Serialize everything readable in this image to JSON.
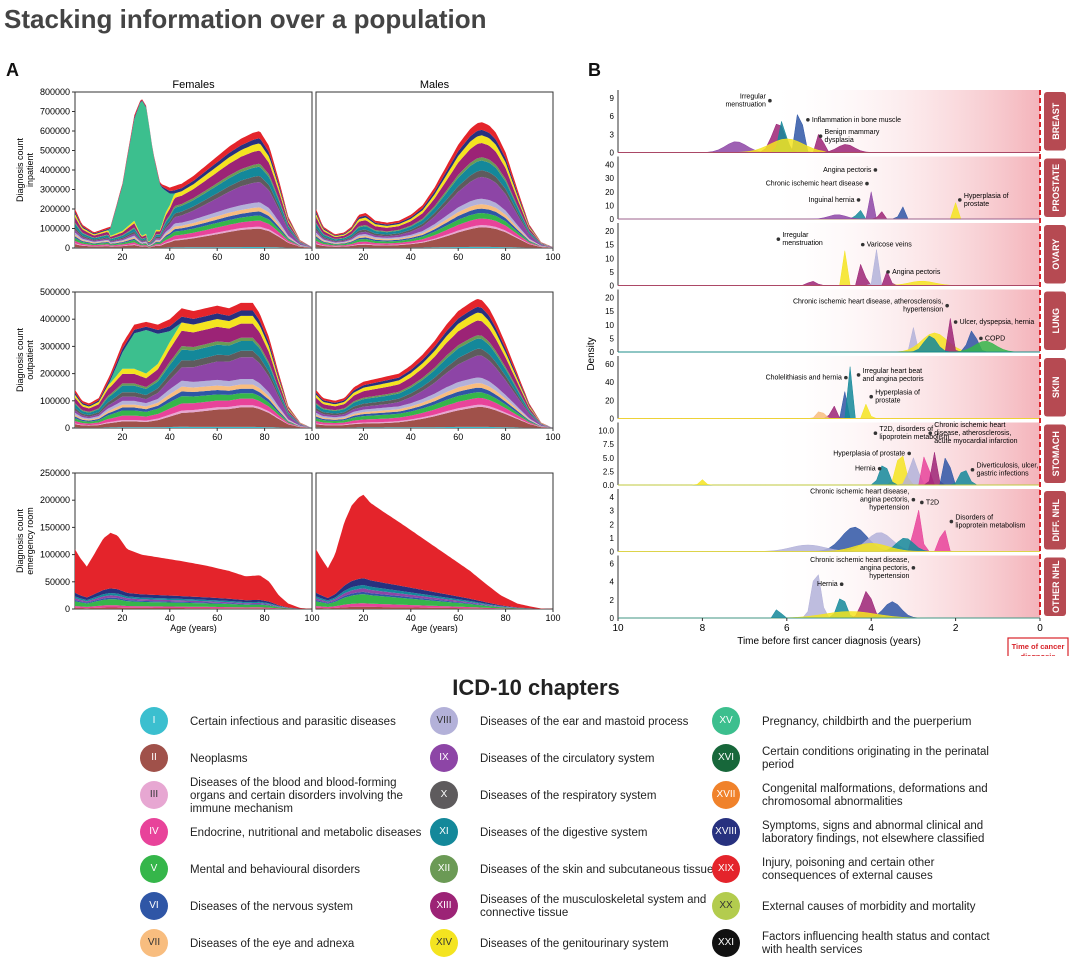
{
  "title": "Stacking information over a population",
  "panel_a_letter": "A",
  "panel_b_letter": "B",
  "legend_title": "ICD-10 chapters",
  "chart_data": [
    {
      "type": "area",
      "panel": "A",
      "stacked": true,
      "column_titles": [
        "Females",
        "Males"
      ],
      "xlabel": "Age (years)",
      "xlim": [
        0,
        100
      ],
      "xticks": [
        "20",
        "40",
        "60",
        "80",
        "100"
      ],
      "rows": [
        {
          "ylabel": [
            "Diagnosis count",
            "inpatient"
          ],
          "ylim": [
            0,
            800000
          ],
          "yticks": [
            "0",
            "100000",
            "200000",
            "300000",
            "400000",
            "500000",
            "600000",
            "700000",
            "800000"
          ],
          "females_total": {
            "x": [
              0,
              3,
              8,
              15,
              20,
              25,
              28,
              30,
              33,
              36,
              40,
              45,
              50,
              55,
              60,
              65,
              70,
              75,
              78,
              82,
              86,
              90,
              95,
              100
            ],
            "y": [
              200000,
              120000,
              80000,
              110000,
              330000,
              680000,
              770000,
              730000,
              490000,
              330000,
              310000,
              330000,
              370000,
              420000,
              470000,
              520000,
              560000,
              590000,
              600000,
              520000,
              350000,
              160000,
              40000,
              5000
            ]
          },
          "females_pregnancy": {
            "x": [
              14,
              20,
              25,
              28,
              31,
              34,
              38,
              42
            ],
            "y": [
              0,
              230000,
              520000,
              700000,
              620000,
              330000,
              120000,
              0
            ]
          },
          "males_total": {
            "x": [
              0,
              3,
              8,
              12,
              15,
              18,
              21,
              25,
              30,
              35,
              40,
              45,
              50,
              55,
              60,
              65,
              68,
              70,
              73,
              76,
              80,
              85,
              90,
              95,
              100
            ],
            "y": [
              200000,
              110000,
              70000,
              80000,
              110000,
              170000,
              180000,
              140000,
              130000,
              140000,
              170000,
              220000,
              310000,
              420000,
              530000,
              610000,
              640000,
              645000,
              630000,
              590000,
              490000,
              300000,
              120000,
              30000,
              5000
            ]
          }
        },
        {
          "ylabel": [
            "Diagnosis count",
            "outpatient"
          ],
          "ylim": [
            0,
            500000
          ],
          "yticks": [
            "0",
            "100000",
            "200000",
            "300000",
            "400000",
            "500000"
          ],
          "females_total": {
            "x": [
              0,
              3,
              6,
              10,
              15,
              20,
              25,
              30,
              35,
              40,
              45,
              50,
              55,
              60,
              65,
              70,
              75,
              78,
              82,
              86,
              90,
              95,
              100
            ],
            "y": [
              140000,
              100000,
              90000,
              110000,
              200000,
              310000,
              380000,
              390000,
              380000,
              400000,
              440000,
              430000,
              440000,
              450000,
              440000,
              460000,
              460000,
              420000,
              330000,
              200000,
              80000,
              20000,
              0
            ]
          },
          "females_pregnancy": {
            "x": [
              14,
              20,
              25,
              30,
              35,
              40,
              45
            ],
            "y": [
              0,
              60000,
              130000,
              160000,
              110000,
              40000,
              0
            ]
          },
          "males_total": {
            "x": [
              0,
              3,
              8,
              12,
              16,
              20,
              25,
              30,
              35,
              40,
              45,
              50,
              55,
              60,
              65,
              68,
              70,
              73,
              76,
              80,
              85,
              90,
              95,
              100
            ],
            "y": [
              140000,
              110000,
              100000,
              110000,
              150000,
              170000,
              180000,
              190000,
              200000,
              230000,
              270000,
              320000,
              380000,
              430000,
              460000,
              475000,
              470000,
              440000,
              390000,
              310000,
              200000,
              90000,
              20000,
              0
            ]
          }
        },
        {
          "ylabel": [
            "Diagnosis count",
            "emergency room"
          ],
          "ylim": [
            0,
            250000
          ],
          "yticks": [
            "0",
            "50000",
            "100000",
            "150000",
            "200000",
            "250000"
          ],
          "females_total": {
            "x": [
              0,
              2,
              5,
              8,
              12,
              15,
              18,
              22,
              28,
              35,
              45,
              55,
              65,
              72,
              78,
              82,
              86,
              90,
              95,
              100
            ],
            "y": [
              110000,
              95000,
              78000,
              100000,
              130000,
              140000,
              135000,
              110000,
              100000,
              95000,
              88000,
              80000,
              70000,
              60000,
              62000,
              50000,
              25000,
              10000,
              2000,
              0
            ]
          },
          "males_total": {
            "x": [
              0,
              2,
              5,
              8,
              12,
              15,
              18,
              20,
              23,
              28,
              35,
              45,
              55,
              65,
              72,
              78,
              85,
              90,
              95,
              100
            ],
            "y": [
              110000,
              95000,
              75000,
              100000,
              160000,
              190000,
              205000,
              210000,
              195000,
              180000,
              160000,
              130000,
              100000,
              70000,
              45000,
              25000,
              10000,
              5000,
              1000,
              0
            ]
          }
        }
      ]
    },
    {
      "type": "area",
      "panel": "B",
      "xlabel": "Time before first cancer diagnosis (years)",
      "ylabel": "Density",
      "xlim": [
        10,
        0
      ],
      "xticks": [
        "10",
        "8",
        "6",
        "4",
        "2",
        "0"
      ],
      "cancer_marker": [
        "Time of cancer",
        "diagnosis"
      ],
      "strips": [
        {
          "cancer": "BREAST",
          "yticks": [
            "0",
            "3",
            "6",
            "9"
          ],
          "annotations": [
            [
              "Irregular",
              "menstruation"
            ],
            [
              "Inflammation in bone muscle"
            ],
            [
              "Benign mammary",
              "dysplasia"
            ]
          ]
        },
        {
          "cancer": "PROSTATE",
          "yticks": [
            "0",
            "10",
            "20",
            "30",
            "40"
          ],
          "annotations": [
            [
              "Angina pectoris"
            ],
            [
              "Chronic ischemic heart disease"
            ],
            [
              "Inguinal hernia"
            ],
            [
              "Hyperplasia of",
              "prostate"
            ]
          ]
        },
        {
          "cancer": "OVARY",
          "yticks": [
            "0",
            "5",
            "10",
            "15",
            "20"
          ],
          "annotations": [
            [
              "Irregular",
              "menstruation"
            ],
            [
              "Varicose veins"
            ],
            [
              "Angina pectoris"
            ]
          ]
        },
        {
          "cancer": "LUNG",
          "yticks": [
            "0",
            "5",
            "10",
            "15",
            "20"
          ],
          "annotations": [
            [
              "Chronic ischemic heart disease, atherosclerosis,",
              "hypertension"
            ],
            [
              "Ulcer, dyspepsia, hernia"
            ],
            [
              "COPD"
            ]
          ]
        },
        {
          "cancer": "SKIN",
          "yticks": [
            "0",
            "20",
            "40",
            "60"
          ],
          "annotations": [
            [
              "Cholelithiasis and hernia"
            ],
            [
              "Irregular heart beat",
              "and angina pectoris"
            ],
            [
              "Hyperplasia of",
              "prostate"
            ]
          ]
        },
        {
          "cancer": "STOMACH",
          "yticks": [
            "0.0",
            "2.5",
            "5.0",
            "7.5",
            "10.0"
          ],
          "annotations": [
            [
              "T2D, disorders of",
              "lipoprotein metabolism"
            ],
            [
              "Chronic ischemic heart",
              "disease, atherosclerosis,",
              "acute myocardial infarction"
            ],
            [
              "Hyperplasia of prostate"
            ],
            [
              "Hernia"
            ],
            [
              "Diverticulosis, ulcer,",
              "gastric infections"
            ]
          ]
        },
        {
          "cancer": "DIFF. NHL",
          "yticks": [
            "0",
            "1",
            "2",
            "3",
            "4"
          ],
          "annotations": [
            [
              "Chronic ischemic heart disease,",
              "angina pectoris,",
              "hypertension"
            ],
            [
              "T2D"
            ],
            [
              "Disorders of",
              "lipoprotein metabolism"
            ]
          ]
        },
        {
          "cancer": "OTHER NHL",
          "yticks": [
            "0",
            "2",
            "4",
            "6"
          ],
          "annotations": [
            [
              "Chronic ischemic heart disease,",
              "angina pectoris,",
              "hypertension"
            ],
            [
              "Hernia"
            ]
          ]
        }
      ]
    }
  ],
  "legend": [
    {
      "numeral": "I",
      "label": "Certain infectious and parasitic diseases",
      "color": "#3bbfcf"
    },
    {
      "numeral": "II",
      "label": "Neoplasms",
      "color": "#a0514a"
    },
    {
      "numeral": "III",
      "label": "Diseases of the blood and blood-forming organs and certain disorders involving the immune mechanism",
      "color": "#e7a7d2"
    },
    {
      "numeral": "IV",
      "label": "Endocrine, nutritional and metabolic diseases",
      "color": "#e8439a"
    },
    {
      "numeral": "V",
      "label": "Mental and behavioural disorders",
      "color": "#35b64a"
    },
    {
      "numeral": "VI",
      "label": "Diseases of the nervous system",
      "color": "#2f56a6"
    },
    {
      "numeral": "VII",
      "label": "Diseases of the eye and adnexa",
      "color": "#f8bd7f"
    },
    {
      "numeral": "VIII",
      "label": "Diseases of the ear and mastoid process",
      "color": "#b3b1d9"
    },
    {
      "numeral": "IX",
      "label": "Diseases of the circulatory system",
      "color": "#8d45a6"
    },
    {
      "numeral": "X",
      "label": "Diseases of the respiratory system",
      "color": "#5e5b5d"
    },
    {
      "numeral": "XI",
      "label": "Diseases of the digestive system",
      "color": "#14889a"
    },
    {
      "numeral": "XII",
      "label": "Diseases of the skin and subcutaneous tissue",
      "color": "#6b9a55"
    },
    {
      "numeral": "XIII",
      "label": "Diseases of the musculoskeletal system and connective tissue",
      "color": "#9c2376"
    },
    {
      "numeral": "XIV",
      "label": "Diseases of the genitourinary system",
      "color": "#f4e420"
    },
    {
      "numeral": "XV",
      "label": "Pregnancy, childbirth and the puerperium",
      "color": "#3cbf8e"
    },
    {
      "numeral": "XVI",
      "label": "Certain conditions originating in the perinatal period",
      "color": "#17673a"
    },
    {
      "numeral": "XVII",
      "label": "Congenital malformations, deformations and chromosomal abnormalities",
      "color": "#f0822b"
    },
    {
      "numeral": "XVIII",
      "label": "Symptoms, signs and abnormal clinical and laboratory findings, not elsewhere classified",
      "color": "#27317f"
    },
    {
      "numeral": "XIX",
      "label": "Injury, poisoning and certain other consequences of external causes",
      "color": "#e4242b"
    },
    {
      "numeral": "XX",
      "label": "External causes of morbidity and mortality",
      "color": "#b3cc4e"
    },
    {
      "numeral": "XXI",
      "label": "Factors influencing health status and contact with health services",
      "color": "#111111"
    }
  ]
}
